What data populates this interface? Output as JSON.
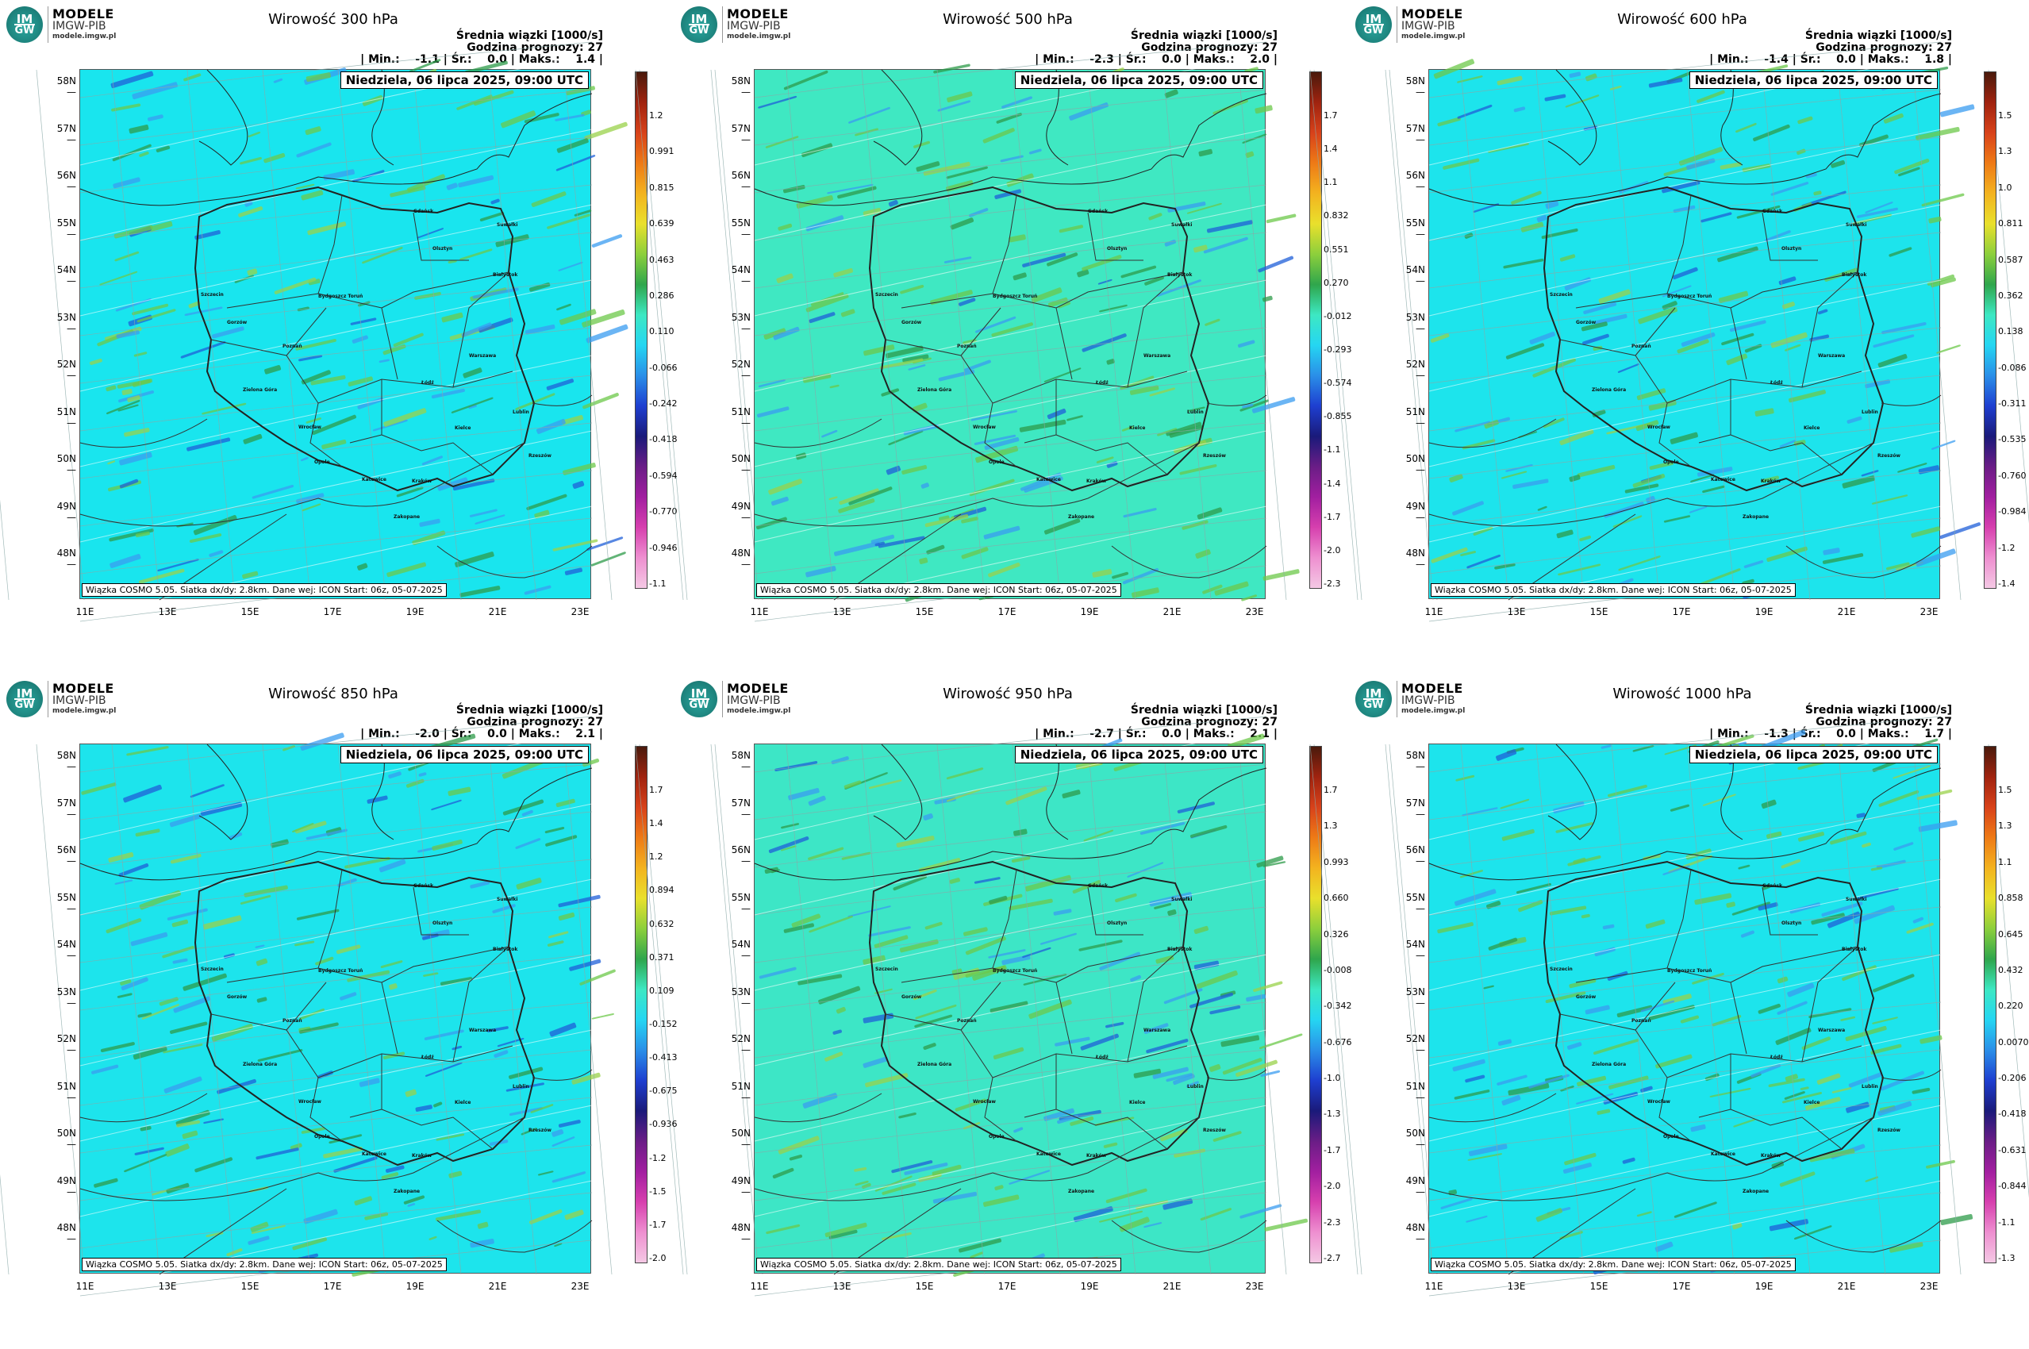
{
  "logo": {
    "line1": "MODELE",
    "line2": "IMGW-PIB",
    "line3": "modele.imgw.pl",
    "badge_top": "IM",
    "badge_bottom": "GW"
  },
  "common": {
    "subtitle": "Średnia wiązki [1000/s]",
    "forecast_hour": "Godzina prognozy: 27",
    "stat_labels": {
      "min": "| Min.:",
      "avg": "| Śr.:",
      "max": "| Maks.:"
    },
    "date": "Niedziela, 06 lipca 2025, 09:00 UTC",
    "footer": "Wiązka COSMO 5.05. Siatka dx/dy: 2.8km. Dane wej: ICON Start: 06z, 05-07-2025",
    "lat_labels": [
      "58N",
      "57N",
      "56N",
      "55N",
      "54N",
      "53N",
      "52N",
      "51N",
      "50N",
      "49N",
      "48N"
    ],
    "lon_labels": [
      "11E",
      "13E",
      "15E",
      "17E",
      "19E",
      "21E",
      "23E"
    ],
    "cities": [
      "Gdańsk",
      "Olsztyn",
      "Suwałki",
      "Białystok",
      "Szczecin",
      "Bydgoszcz Toruń",
      "Gorzów",
      "Poznań",
      "Warszawa",
      "Łódź",
      "Zielona Góra",
      "Lublin",
      "Wrocław",
      "Kielce",
      "Opole",
      "Rzeszów",
      "Katowice",
      "Kraków",
      "Zakopane"
    ]
  },
  "colors": {
    "low_bg": "#1fe3e8",
    "mid_bg": "#3de8c3",
    "border": "#222222"
  },
  "panels": [
    {
      "id": "300",
      "title": "Wirowość 300 hPa",
      "min": "-1.1",
      "avg": "0.0",
      "max": "1.4",
      "bg": "#19e5ee",
      "colorbar": [
        "1.2",
        "0.991",
        "0.815",
        "0.639",
        "0.463",
        "0.286",
        "0.110",
        "-0.066",
        "-0.242",
        "-0.418",
        "-0.594",
        "-0.770",
        "-0.946",
        "-1.1"
      ]
    },
    {
      "id": "500",
      "title": "Wirowość 500 hPa",
      "min": "-2.3",
      "avg": "0.0",
      "max": "2.0",
      "bg": "#3fe8c2",
      "colorbar": [
        "1.7",
        "1.4",
        "1.1",
        "0.832",
        "0.551",
        "0.270",
        "-0.012",
        "-0.293",
        "-0.574",
        "-0.855",
        "-1.1",
        "-1.4",
        "-1.7",
        "-2.0",
        "-2.3"
      ]
    },
    {
      "id": "600",
      "title": "Wirowość 600 hPa",
      "min": "-1.4",
      "avg": "0.0",
      "max": "1.8",
      "bg": "#1de4ec",
      "colorbar": [
        "1.5",
        "1.3",
        "1.0",
        "0.811",
        "0.587",
        "0.362",
        "0.138",
        "-0.086",
        "-0.311",
        "-0.535",
        "-0.760",
        "-0.984",
        "-1.2",
        "-1.4"
      ]
    },
    {
      "id": "850",
      "title": "Wirowość 850 hPa",
      "min": "-2.0",
      "avg": "0.0",
      "max": "2.1",
      "bg": "#1de4ec",
      "colorbar": [
        "1.7",
        "1.4",
        "1.2",
        "0.894",
        "0.632",
        "0.371",
        "0.109",
        "-0.152",
        "-0.413",
        "-0.675",
        "-0.936",
        "-1.2",
        "-1.5",
        "-1.7",
        "-2.0"
      ]
    },
    {
      "id": "950",
      "title": "Wirowość 950 hPa",
      "min": "-2.7",
      "avg": "0.0",
      "max": "2.1",
      "bg": "#3de6c6",
      "colorbar": [
        "1.7",
        "1.3",
        "0.993",
        "0.660",
        "0.326",
        "-0.008",
        "-0.342",
        "-0.676",
        "-1.0",
        "-1.3",
        "-1.7",
        "-2.0",
        "-2.3",
        "-2.7"
      ]
    },
    {
      "id": "1000",
      "title": "Wirowość 1000 hPa",
      "min": "-1.3",
      "avg": "0.0",
      "max": "1.7",
      "bg": "#1de4ec",
      "colorbar": [
        "1.5",
        "1.3",
        "1.1",
        "0.858",
        "0.645",
        "0.432",
        "0.220",
        "0.0070",
        "-0.206",
        "-0.418",
        "-0.631",
        "-0.844",
        "-1.1",
        "-1.3"
      ]
    }
  ]
}
